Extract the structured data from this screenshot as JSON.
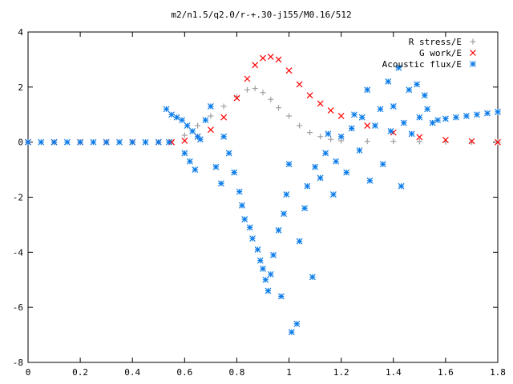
{
  "chart_data": {
    "type": "scatter",
    "title": "m2/n1.5/q2.0/r-+.30-j155/M0.16/512",
    "xlabel": "",
    "ylabel": "",
    "xlim": [
      0,
      1.8
    ],
    "ylim": [
      -8,
      4
    ],
    "x_ticks": [
      "0",
      "0.2",
      "0.4",
      "0.6",
      "0.8",
      "1",
      "1.2",
      "1.4",
      "1.6",
      "1.8"
    ],
    "y_ticks": [
      "4",
      "2",
      "0",
      "-2",
      "-4",
      "-6",
      "-8"
    ],
    "legend_position": "top-right",
    "grid": false,
    "series": [
      {
        "name": "R stress/E",
        "marker": "plus",
        "color": "#a0a0a0",
        "points": [
          [
            0.0,
            0.0
          ],
          [
            0.1,
            0.0
          ],
          [
            0.2,
            0.0
          ],
          [
            0.3,
            0.0
          ],
          [
            0.4,
            0.0
          ],
          [
            0.5,
            0.0
          ],
          [
            0.55,
            0.02
          ],
          [
            0.6,
            0.25
          ],
          [
            0.65,
            0.6
          ],
          [
            0.7,
            0.95
          ],
          [
            0.75,
            1.3
          ],
          [
            0.8,
            1.65
          ],
          [
            0.84,
            1.9
          ],
          [
            0.87,
            1.95
          ],
          [
            0.9,
            1.8
          ],
          [
            0.93,
            1.55
          ],
          [
            0.96,
            1.25
          ],
          [
            1.0,
            0.95
          ],
          [
            1.04,
            0.6
          ],
          [
            1.08,
            0.35
          ],
          [
            1.12,
            0.2
          ],
          [
            1.16,
            0.1
          ],
          [
            1.2,
            0.05
          ],
          [
            1.3,
            0.03
          ],
          [
            1.4,
            0.03
          ],
          [
            1.5,
            0.02
          ],
          [
            1.6,
            0.01
          ],
          [
            1.7,
            0.0
          ],
          [
            1.8,
            0.0
          ]
        ]
      },
      {
        "name": "G work/E",
        "marker": "cross",
        "color": "#ff0000",
        "points": [
          [
            0.0,
            0.0
          ],
          [
            0.1,
            0.0
          ],
          [
            0.2,
            0.0
          ],
          [
            0.3,
            0.0
          ],
          [
            0.4,
            0.0
          ],
          [
            0.5,
            0.0
          ],
          [
            0.55,
            0.0
          ],
          [
            0.6,
            0.05
          ],
          [
            0.65,
            0.2
          ],
          [
            0.7,
            0.45
          ],
          [
            0.75,
            0.9
          ],
          [
            0.8,
            1.6
          ],
          [
            0.84,
            2.3
          ],
          [
            0.87,
            2.8
          ],
          [
            0.9,
            3.05
          ],
          [
            0.93,
            3.1
          ],
          [
            0.96,
            3.0
          ],
          [
            1.0,
            2.6
          ],
          [
            1.04,
            2.1
          ],
          [
            1.08,
            1.7
          ],
          [
            1.12,
            1.4
          ],
          [
            1.16,
            1.15
          ],
          [
            1.2,
            0.95
          ],
          [
            1.3,
            0.6
          ],
          [
            1.4,
            0.35
          ],
          [
            1.5,
            0.18
          ],
          [
            1.6,
            0.08
          ],
          [
            1.7,
            0.03
          ],
          [
            1.8,
            0.0
          ]
        ]
      },
      {
        "name": "Acoustic flux/E",
        "marker": "star",
        "color": "#0a7be8",
        "points": [
          [
            0.0,
            0.0
          ],
          [
            0.05,
            0.0
          ],
          [
            0.1,
            0.0
          ],
          [
            0.15,
            0.0
          ],
          [
            0.2,
            0.0
          ],
          [
            0.25,
            0.0
          ],
          [
            0.3,
            0.0
          ],
          [
            0.35,
            0.0
          ],
          [
            0.4,
            0.0
          ],
          [
            0.45,
            0.0
          ],
          [
            0.5,
            0.0
          ],
          [
            0.54,
            0.0
          ],
          [
            0.53,
            1.2
          ],
          [
            0.55,
            1.0
          ],
          [
            0.57,
            0.9
          ],
          [
            0.59,
            0.8
          ],
          [
            0.61,
            0.6
          ],
          [
            0.63,
            0.4
          ],
          [
            0.65,
            0.2
          ],
          [
            0.6,
            -0.4
          ],
          [
            0.62,
            -0.7
          ],
          [
            0.64,
            -1.0
          ],
          [
            0.66,
            0.1
          ],
          [
            0.68,
            0.8
          ],
          [
            0.7,
            1.3
          ],
          [
            0.72,
            -0.9
          ],
          [
            0.74,
            -1.5
          ],
          [
            0.75,
            0.2
          ],
          [
            0.77,
            -0.4
          ],
          [
            0.79,
            -1.1
          ],
          [
            0.81,
            -1.8
          ],
          [
            0.82,
            -2.3
          ],
          [
            0.83,
            -2.8
          ],
          [
            0.85,
            -3.1
          ],
          [
            0.86,
            -3.5
          ],
          [
            0.88,
            -3.9
          ],
          [
            0.89,
            -4.3
          ],
          [
            0.9,
            -4.6
          ],
          [
            0.91,
            -5.0
          ],
          [
            0.92,
            -5.4
          ],
          [
            0.93,
            -4.8
          ],
          [
            0.94,
            -4.1
          ],
          [
            0.96,
            -3.2
          ],
          [
            0.97,
            -5.6
          ],
          [
            0.98,
            -2.6
          ],
          [
            0.99,
            -1.9
          ],
          [
            1.0,
            -0.8
          ],
          [
            1.01,
            -6.9
          ],
          [
            1.03,
            -6.6
          ],
          [
            1.04,
            -3.6
          ],
          [
            1.06,
            -2.4
          ],
          [
            1.07,
            -1.6
          ],
          [
            1.09,
            -4.9
          ],
          [
            1.1,
            -0.9
          ],
          [
            1.12,
            -1.3
          ],
          [
            1.14,
            -0.4
          ],
          [
            1.15,
            0.3
          ],
          [
            1.17,
            -1.9
          ],
          [
            1.18,
            -0.7
          ],
          [
            1.2,
            0.2
          ],
          [
            1.22,
            -1.1
          ],
          [
            1.24,
            0.5
          ],
          [
            1.25,
            1.0
          ],
          [
            1.27,
            -0.3
          ],
          [
            1.28,
            0.9
          ],
          [
            1.3,
            1.9
          ],
          [
            1.31,
            -1.4
          ],
          [
            1.33,
            0.6
          ],
          [
            1.35,
            1.2
          ],
          [
            1.36,
            -0.8
          ],
          [
            1.38,
            2.2
          ],
          [
            1.39,
            0.4
          ],
          [
            1.4,
            1.3
          ],
          [
            1.42,
            2.7
          ],
          [
            1.43,
            -1.6
          ],
          [
            1.44,
            0.7
          ],
          [
            1.46,
            1.9
          ],
          [
            1.47,
            0.3
          ],
          [
            1.49,
            2.1
          ],
          [
            1.5,
            0.9
          ],
          [
            1.52,
            1.7
          ],
          [
            1.53,
            1.2
          ],
          [
            1.55,
            0.7
          ],
          [
            1.57,
            0.8
          ],
          [
            1.6,
            0.85
          ],
          [
            1.64,
            0.9
          ],
          [
            1.68,
            0.95
          ],
          [
            1.72,
            1.0
          ],
          [
            1.76,
            1.05
          ],
          [
            1.8,
            1.1
          ]
        ]
      }
    ]
  },
  "colors": {
    "axis": "#000000",
    "background": "#ffffff"
  }
}
